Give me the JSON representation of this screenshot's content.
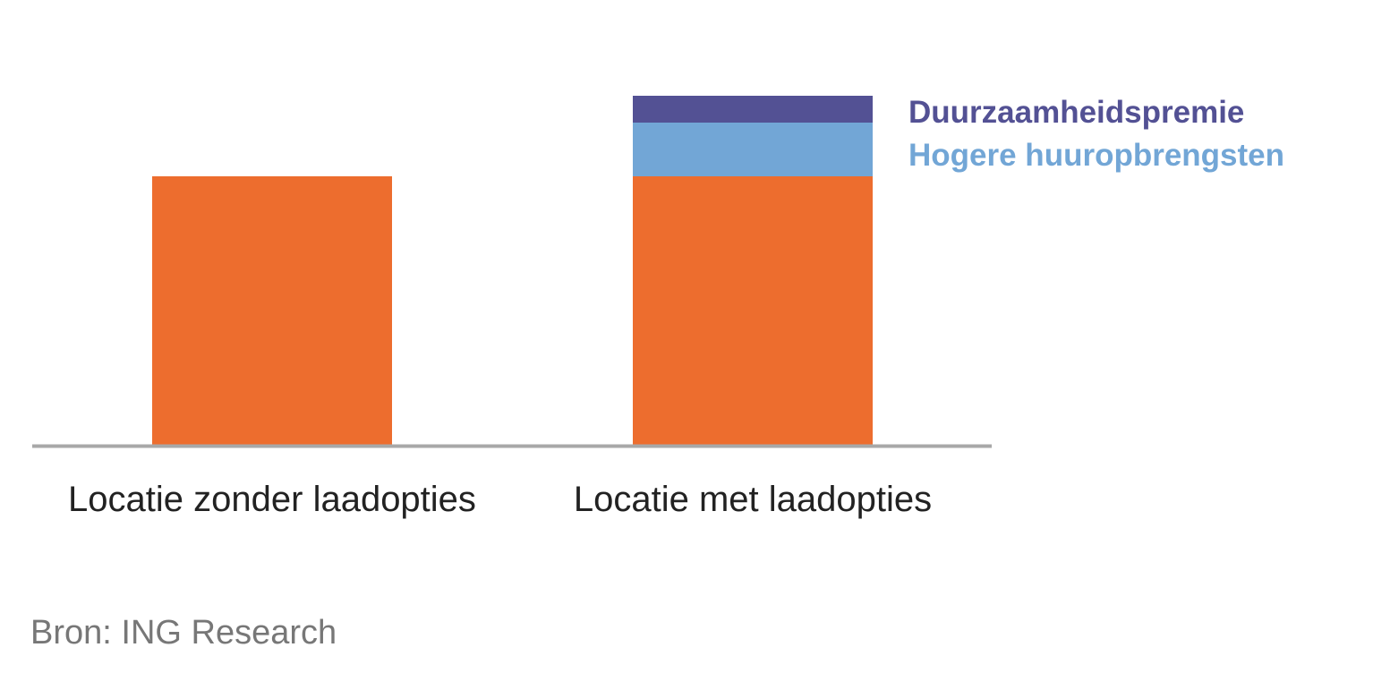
{
  "chart_data": {
    "type": "bar",
    "stacked": true,
    "categories": [
      "Locatie zonder laadopties",
      "Locatie met laadopties"
    ],
    "series": [
      {
        "name": "",
        "values": [
          100,
          100
        ],
        "color": "#ED6D2E"
      },
      {
        "name": "Hogere huuropbrengsten",
        "values": [
          0,
          20
        ],
        "color": "#72A6D6"
      },
      {
        "name": "Duurzaamheidspremie",
        "values": [
          0,
          10
        ],
        "color": "#535194"
      }
    ],
    "ylim": [
      0,
      130
    ],
    "axis_color": "#A8A8A8",
    "grid": false,
    "legend": "right-of-bars",
    "yaxis_visible": false
  },
  "source": "Bron: ING Research"
}
